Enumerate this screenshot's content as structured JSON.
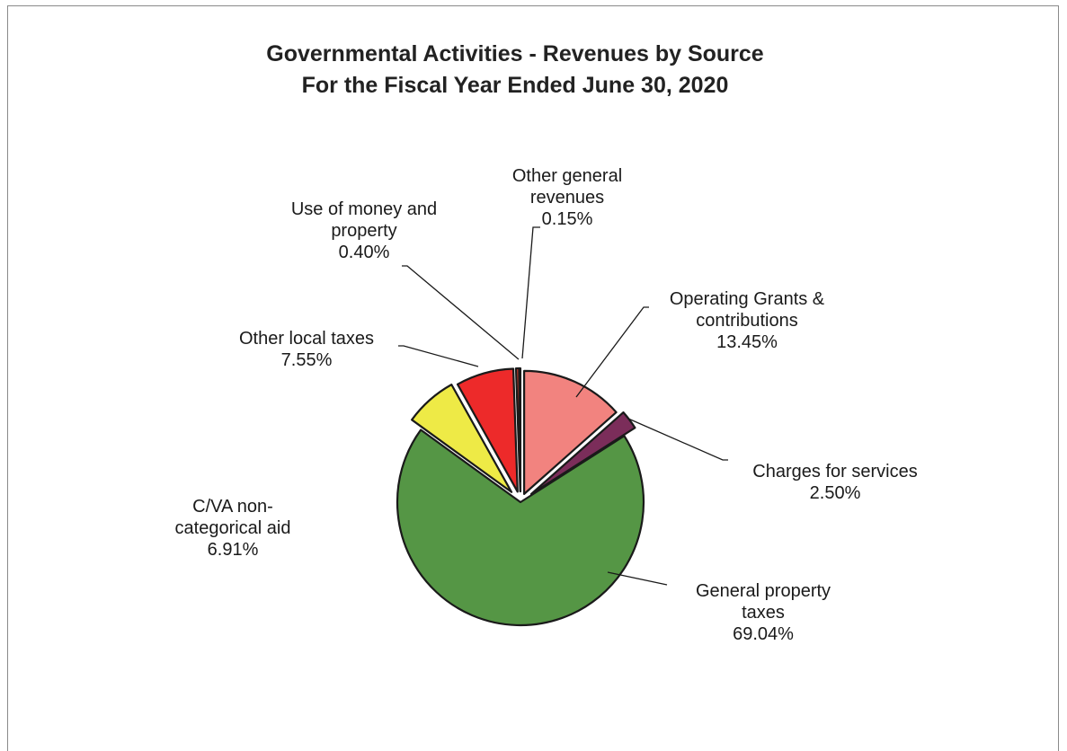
{
  "chart_data": {
    "type": "pie",
    "title": "Governmental Activities - Revenues by Source",
    "subtitle": "For the Fiscal Year Ended June 30, 2020",
    "slices": [
      {
        "label_lines": [
          "Operating Grants &",
          "contributions"
        ],
        "value": 13.45,
        "value_label": "13.45%",
        "color": "#f2837f"
      },
      {
        "label_lines": [
          "Charges for services"
        ],
        "value": 2.5,
        "value_label": "2.50%",
        "color": "#7b2d5a"
      },
      {
        "label_lines": [
          "General property",
          "taxes"
        ],
        "value": 69.04,
        "value_label": "69.04%",
        "color": "#559645"
      },
      {
        "label_lines": [
          "C/VA non-",
          "categorical aid"
        ],
        "value": 6.91,
        "value_label": "6.91%",
        "color": "#eeea46"
      },
      {
        "label_lines": [
          "Other local taxes"
        ],
        "value": 7.55,
        "value_label": "7.55%",
        "color": "#ed2a2a"
      },
      {
        "label_lines": [
          "Use of money and",
          "property"
        ],
        "value": 0.4,
        "value_label": "0.40%",
        "color": "#c0392b"
      },
      {
        "label_lines": [
          "Other general",
          "revenues"
        ],
        "value": 0.15,
        "value_label": "0.15%",
        "color": "#7b2d5a"
      }
    ]
  }
}
